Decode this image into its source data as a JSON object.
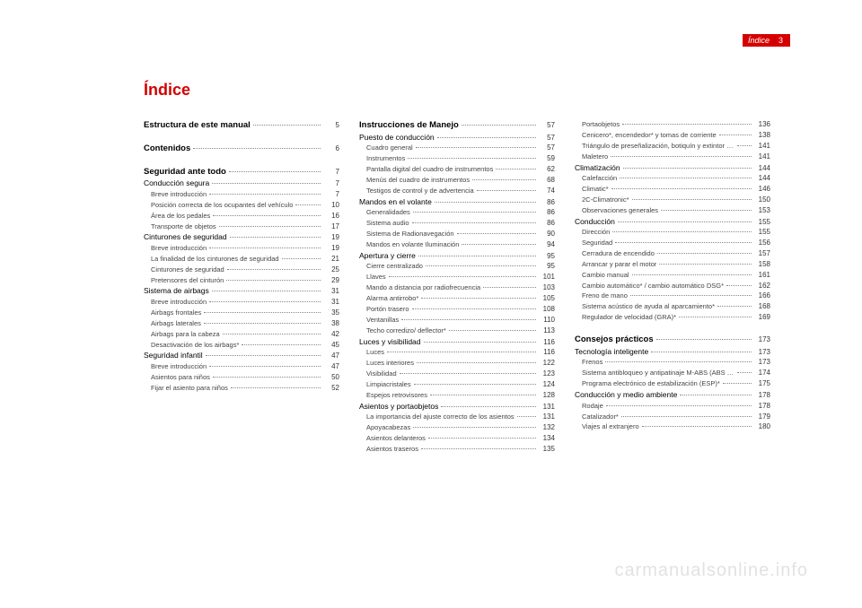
{
  "header": {
    "label": "Índice",
    "page_num": "3",
    "tab_bg": "#d40000"
  },
  "title": "Índice",
  "watermark": "carmanualsonline.info",
  "columns": [
    [
      {
        "style": "bold",
        "text": "Estructura de este manual",
        "page": "5"
      },
      {
        "style": "spacer"
      },
      {
        "style": "bold",
        "text": "Contenidos",
        "page": "6"
      },
      {
        "style": "spacer"
      },
      {
        "style": "bold",
        "text": "Seguridad ante todo",
        "page": "7"
      },
      {
        "style": "section",
        "text": "Conducción segura",
        "page": "7"
      },
      {
        "style": "sub",
        "text": "Breve introducción",
        "page": "7"
      },
      {
        "style": "sub",
        "text": "Posición correcta de los ocupantes del vehículo",
        "page": "10"
      },
      {
        "style": "sub",
        "text": "Área de los pedales",
        "page": "16"
      },
      {
        "style": "sub",
        "text": "Transporte de objetos",
        "page": "17"
      },
      {
        "style": "section",
        "text": "Cinturones de seguridad",
        "page": "19"
      },
      {
        "style": "sub",
        "text": "Breve introducción",
        "page": "19"
      },
      {
        "style": "sub",
        "text": "La finalidad de los cinturones de seguridad",
        "page": "21"
      },
      {
        "style": "sub",
        "text": "Cinturones de seguridad",
        "page": "25"
      },
      {
        "style": "sub",
        "text": "Pretensores del cinturón",
        "page": "29"
      },
      {
        "style": "section",
        "text": "Sistema de airbags",
        "page": "31"
      },
      {
        "style": "sub",
        "text": "Breve introducción",
        "page": "31"
      },
      {
        "style": "sub",
        "text": "Airbags frontales",
        "page": "35"
      },
      {
        "style": "sub",
        "text": "Airbags laterales",
        "page": "38"
      },
      {
        "style": "sub",
        "text": "Airbags para la cabeza",
        "page": "42"
      },
      {
        "style": "sub",
        "text": "Desactivación de los airbags*",
        "page": "45"
      },
      {
        "style": "section",
        "text": "Seguridad infantil",
        "page": "47"
      },
      {
        "style": "sub",
        "text": "Breve introducción",
        "page": "47"
      },
      {
        "style": "sub",
        "text": "Asientos para niños",
        "page": "50"
      },
      {
        "style": "sub",
        "text": "Fijar el asiento para niños",
        "page": "52"
      }
    ],
    [
      {
        "style": "bold",
        "text": "Instrucciones de Manejo",
        "page": "57"
      },
      {
        "style": "section",
        "text": "Puesto de conducción",
        "page": "57"
      },
      {
        "style": "sub",
        "text": "Cuadro general",
        "page": "57"
      },
      {
        "style": "sub",
        "text": "Instrumentos",
        "page": "59"
      },
      {
        "style": "sub",
        "text": "Pantalla digital del cuadro de instrumentos",
        "page": "62"
      },
      {
        "style": "sub",
        "text": "Menús del cuadro de instrumentos",
        "page": "68"
      },
      {
        "style": "sub",
        "text": "Testigos de control y de advertencia",
        "page": "74"
      },
      {
        "style": "section",
        "text": "Mandos en el volante",
        "page": "86"
      },
      {
        "style": "sub",
        "text": "Generalidades",
        "page": "86"
      },
      {
        "style": "sub",
        "text": "Sistema audio",
        "page": "86"
      },
      {
        "style": "sub",
        "text": "Sistema de Radionavegación",
        "page": "90"
      },
      {
        "style": "sub",
        "text": "Mandos en volante Iluminación",
        "page": "94"
      },
      {
        "style": "section",
        "text": "Apertura y cierre",
        "page": "95"
      },
      {
        "style": "sub",
        "text": "Cierre centralizado",
        "page": "95"
      },
      {
        "style": "sub",
        "text": "Llaves",
        "page": "101"
      },
      {
        "style": "sub",
        "text": "Mando a distancia por radiofrecuencia",
        "page": "103"
      },
      {
        "style": "sub",
        "text": "Alarma antirrobo*",
        "page": "105"
      },
      {
        "style": "sub",
        "text": "Portón trasero",
        "page": "108"
      },
      {
        "style": "sub",
        "text": "Ventanillas",
        "page": "110"
      },
      {
        "style": "sub",
        "text": "Techo corredizo/ deflector*",
        "page": "113"
      },
      {
        "style": "section",
        "text": "Luces y visibilidad",
        "page": "116"
      },
      {
        "style": "sub",
        "text": "Luces",
        "page": "116"
      },
      {
        "style": "sub",
        "text": "Luces interiores",
        "page": "122"
      },
      {
        "style": "sub",
        "text": "Visibilidad",
        "page": "123"
      },
      {
        "style": "sub",
        "text": "Limpiacristales",
        "page": "124"
      },
      {
        "style": "sub",
        "text": "Espejos retrovisores",
        "page": "128"
      },
      {
        "style": "section",
        "text": "Asientos y portaobjetos",
        "page": "131"
      },
      {
        "style": "sub",
        "text": "La importancia del ajuste correcto de los asientos",
        "page": "131"
      },
      {
        "style": "sub",
        "text": "Apoyacabezas",
        "page": "132"
      },
      {
        "style": "sub",
        "text": "Asientos delanteros",
        "page": "134"
      },
      {
        "style": "sub",
        "text": "Asientos traseros",
        "page": "135"
      }
    ],
    [
      {
        "style": "sub",
        "text": "Portaobjetos",
        "page": "136"
      },
      {
        "style": "sub",
        "text": "Cenicero*, encendedor* y tomas de corriente",
        "page": "138"
      },
      {
        "style": "sub",
        "text": "Triángulo de preseñalización, botiquín y extintor de incendios",
        "page": "141"
      },
      {
        "style": "sub",
        "text": "Maletero",
        "page": "141"
      },
      {
        "style": "section",
        "text": "Climatización",
        "page": "144"
      },
      {
        "style": "sub",
        "text": "Calefacción",
        "page": "144"
      },
      {
        "style": "sub",
        "text": "Climatic*",
        "page": "146"
      },
      {
        "style": "sub",
        "text": "2C-Climatronic*",
        "page": "150"
      },
      {
        "style": "sub",
        "text": "Observaciones generales",
        "page": "153"
      },
      {
        "style": "section",
        "text": "Conducción",
        "page": "155"
      },
      {
        "style": "sub",
        "text": "Dirección",
        "page": "155"
      },
      {
        "style": "sub",
        "text": "Seguridad",
        "page": "156"
      },
      {
        "style": "sub",
        "text": "Cerradura de encendido",
        "page": "157"
      },
      {
        "style": "sub",
        "text": "Arrancar y parar el motor",
        "page": "158"
      },
      {
        "style": "sub",
        "text": "Cambio manual",
        "page": "161"
      },
      {
        "style": "sub",
        "text": "Cambio automático* / cambio automático DSG*",
        "page": "162"
      },
      {
        "style": "sub",
        "text": "Freno de mano",
        "page": "166"
      },
      {
        "style": "sub",
        "text": "Sistema acústico de ayuda al aparcamiento*",
        "page": "168"
      },
      {
        "style": "sub",
        "text": "Regulador de velocidad (GRA)*",
        "page": "169"
      },
      {
        "style": "spacer"
      },
      {
        "style": "bold",
        "text": "Consejos prácticos",
        "page": "173"
      },
      {
        "style": "section",
        "text": "Tecnología inteligente",
        "page": "173"
      },
      {
        "style": "sub",
        "text": "Frenos",
        "page": "173"
      },
      {
        "style": "sub",
        "text": "Sistema antibloqueo y antipatinaje M-ABS (ABS Y TCS)",
        "page": "174"
      },
      {
        "style": "sub",
        "text": "Programa electrónico de estabilización (ESP)*",
        "page": "175"
      },
      {
        "style": "section",
        "text": "Conducción y medio ambiente",
        "page": "178"
      },
      {
        "style": "sub",
        "text": "Rodaje",
        "page": "178"
      },
      {
        "style": "sub",
        "text": "Catalizador*",
        "page": "179"
      },
      {
        "style": "sub",
        "text": "Viajes al extranjero",
        "page": "180"
      }
    ]
  ]
}
